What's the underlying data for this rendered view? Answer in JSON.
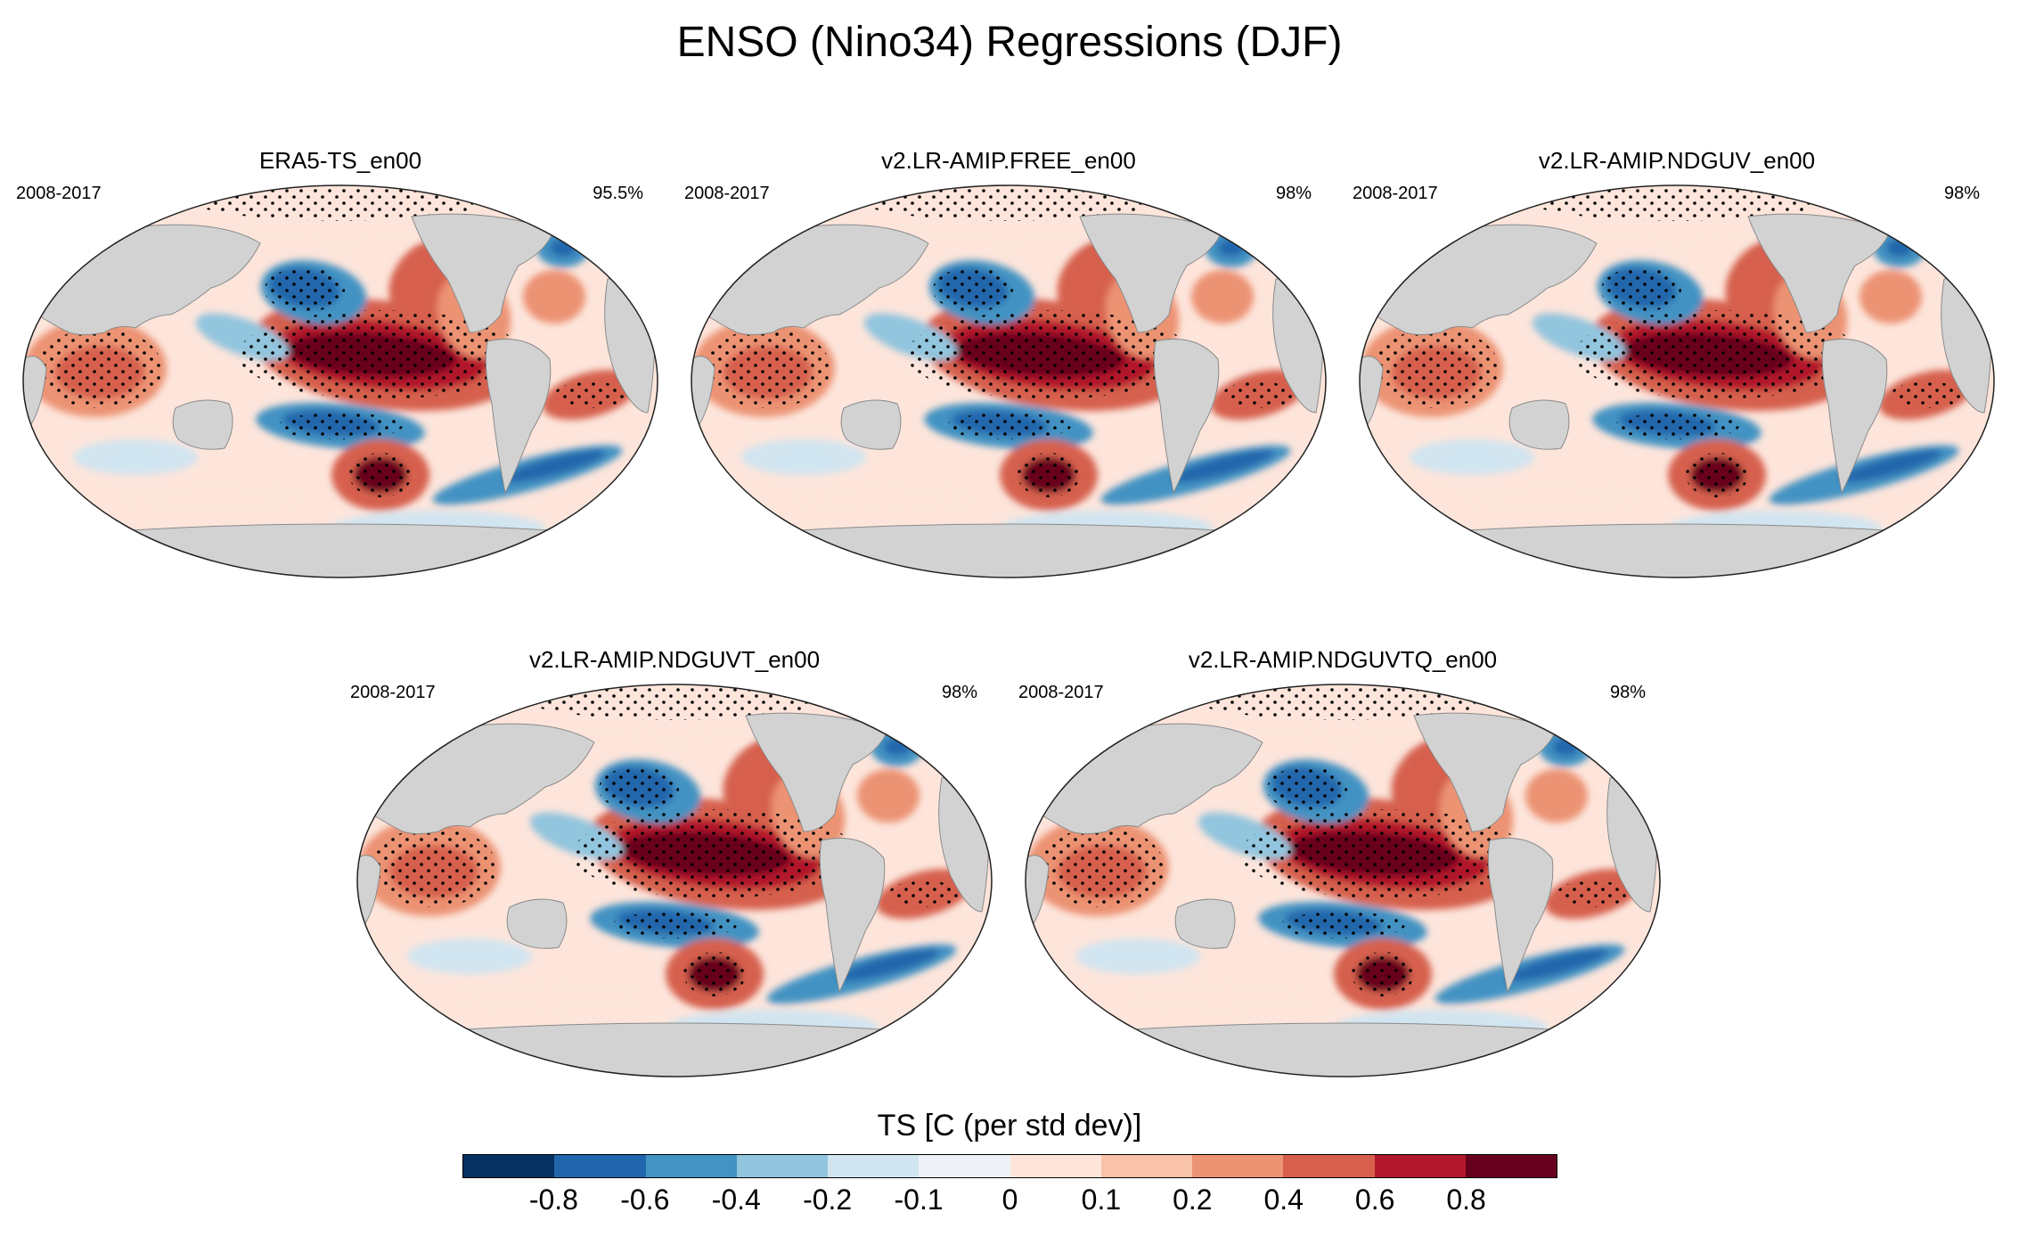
{
  "chart_data": {
    "type": "map-panels",
    "title": "ENSO (Nino34) Regressions (DJF)",
    "variable": "TS",
    "units_label": "TS [C (per std dev)]",
    "season": "DJF",
    "index": "Nino34",
    "panels": [
      {
        "title": "ERA5-TS_en00",
        "years": "2008-2017",
        "significance": "95.5%"
      },
      {
        "title": "v2.LR-AMIP.FREE_en00",
        "years": "2008-2017",
        "significance": "98%"
      },
      {
        "title": "v2.LR-AMIP.NDGUV_en00",
        "years": "2008-2017",
        "significance": "98%"
      },
      {
        "title": "v2.LR-AMIP.NDGUVT_en00",
        "years": "2008-2017",
        "significance": "98%"
      },
      {
        "title": "v2.LR-AMIP.NDGUVTQ_en00",
        "years": "2008-2017",
        "significance": "98%"
      }
    ],
    "colorbar": {
      "levels": [
        "-0.8",
        "-0.6",
        "-0.4",
        "-0.2",
        "-0.1",
        "0",
        "0.1",
        "0.2",
        "0.4",
        "0.6",
        "0.8"
      ],
      "colors": [
        "#053061",
        "#2166ac",
        "#4393c3",
        "#92c5de",
        "#d1e5f0",
        "#eef2f7",
        "#fde5db",
        "#f8c3a8",
        "#ec9373",
        "#d6604d",
        "#b2182b",
        "#67001f"
      ]
    },
    "colors": {
      "land": "#d2d2d2",
      "ocean_warm_strong": "#67001f",
      "ocean_warm": "#d6604d",
      "ocean_cool": "#4393c3",
      "ocean_cool_strong": "#2166ac"
    }
  }
}
